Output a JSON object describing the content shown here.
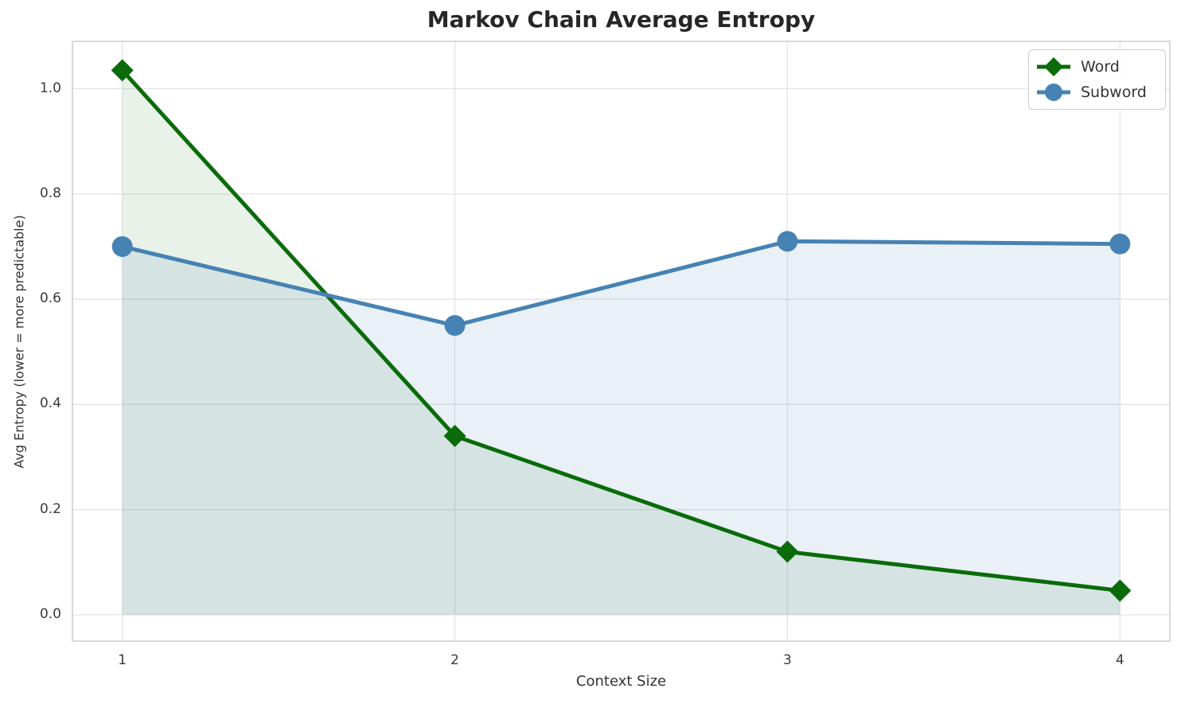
{
  "chart_data": {
    "type": "line",
    "title": "Markov Chain Average Entropy",
    "xlabel": "Context Size",
    "ylabel": "Avg Entropy (lower = more predictable)",
    "x": [
      1,
      2,
      3,
      4
    ],
    "series": [
      {
        "name": "Word",
        "values": [
          1.035,
          0.34,
          0.12,
          0.046
        ],
        "color": "#0a6b0a",
        "marker": "diamond",
        "fill_opacity": 0.09
      },
      {
        "name": "Subword",
        "values": [
          0.7,
          0.55,
          0.71,
          0.705
        ],
        "color": "#4682b4",
        "marker": "circle",
        "fill_opacity": 0.12
      }
    ],
    "area_fill_baseline": 0,
    "xlim": [
      0.85,
      4.15
    ],
    "ylim": [
      -0.05,
      1.09
    ],
    "x_ticks": [
      "1",
      "2",
      "3",
      "4"
    ],
    "x_tick_values": [
      1,
      2,
      3,
      4
    ],
    "y_ticks": [
      "0.0",
      "0.2",
      "0.4",
      "0.6",
      "0.8",
      "1.0"
    ],
    "y_tick_values": [
      0,
      0.2,
      0.4,
      0.6,
      0.8,
      1.0
    ],
    "grid": true,
    "grid_color": "#e2e2e2",
    "spine_color": "#c9c9c9",
    "legend_position": "top-right"
  }
}
